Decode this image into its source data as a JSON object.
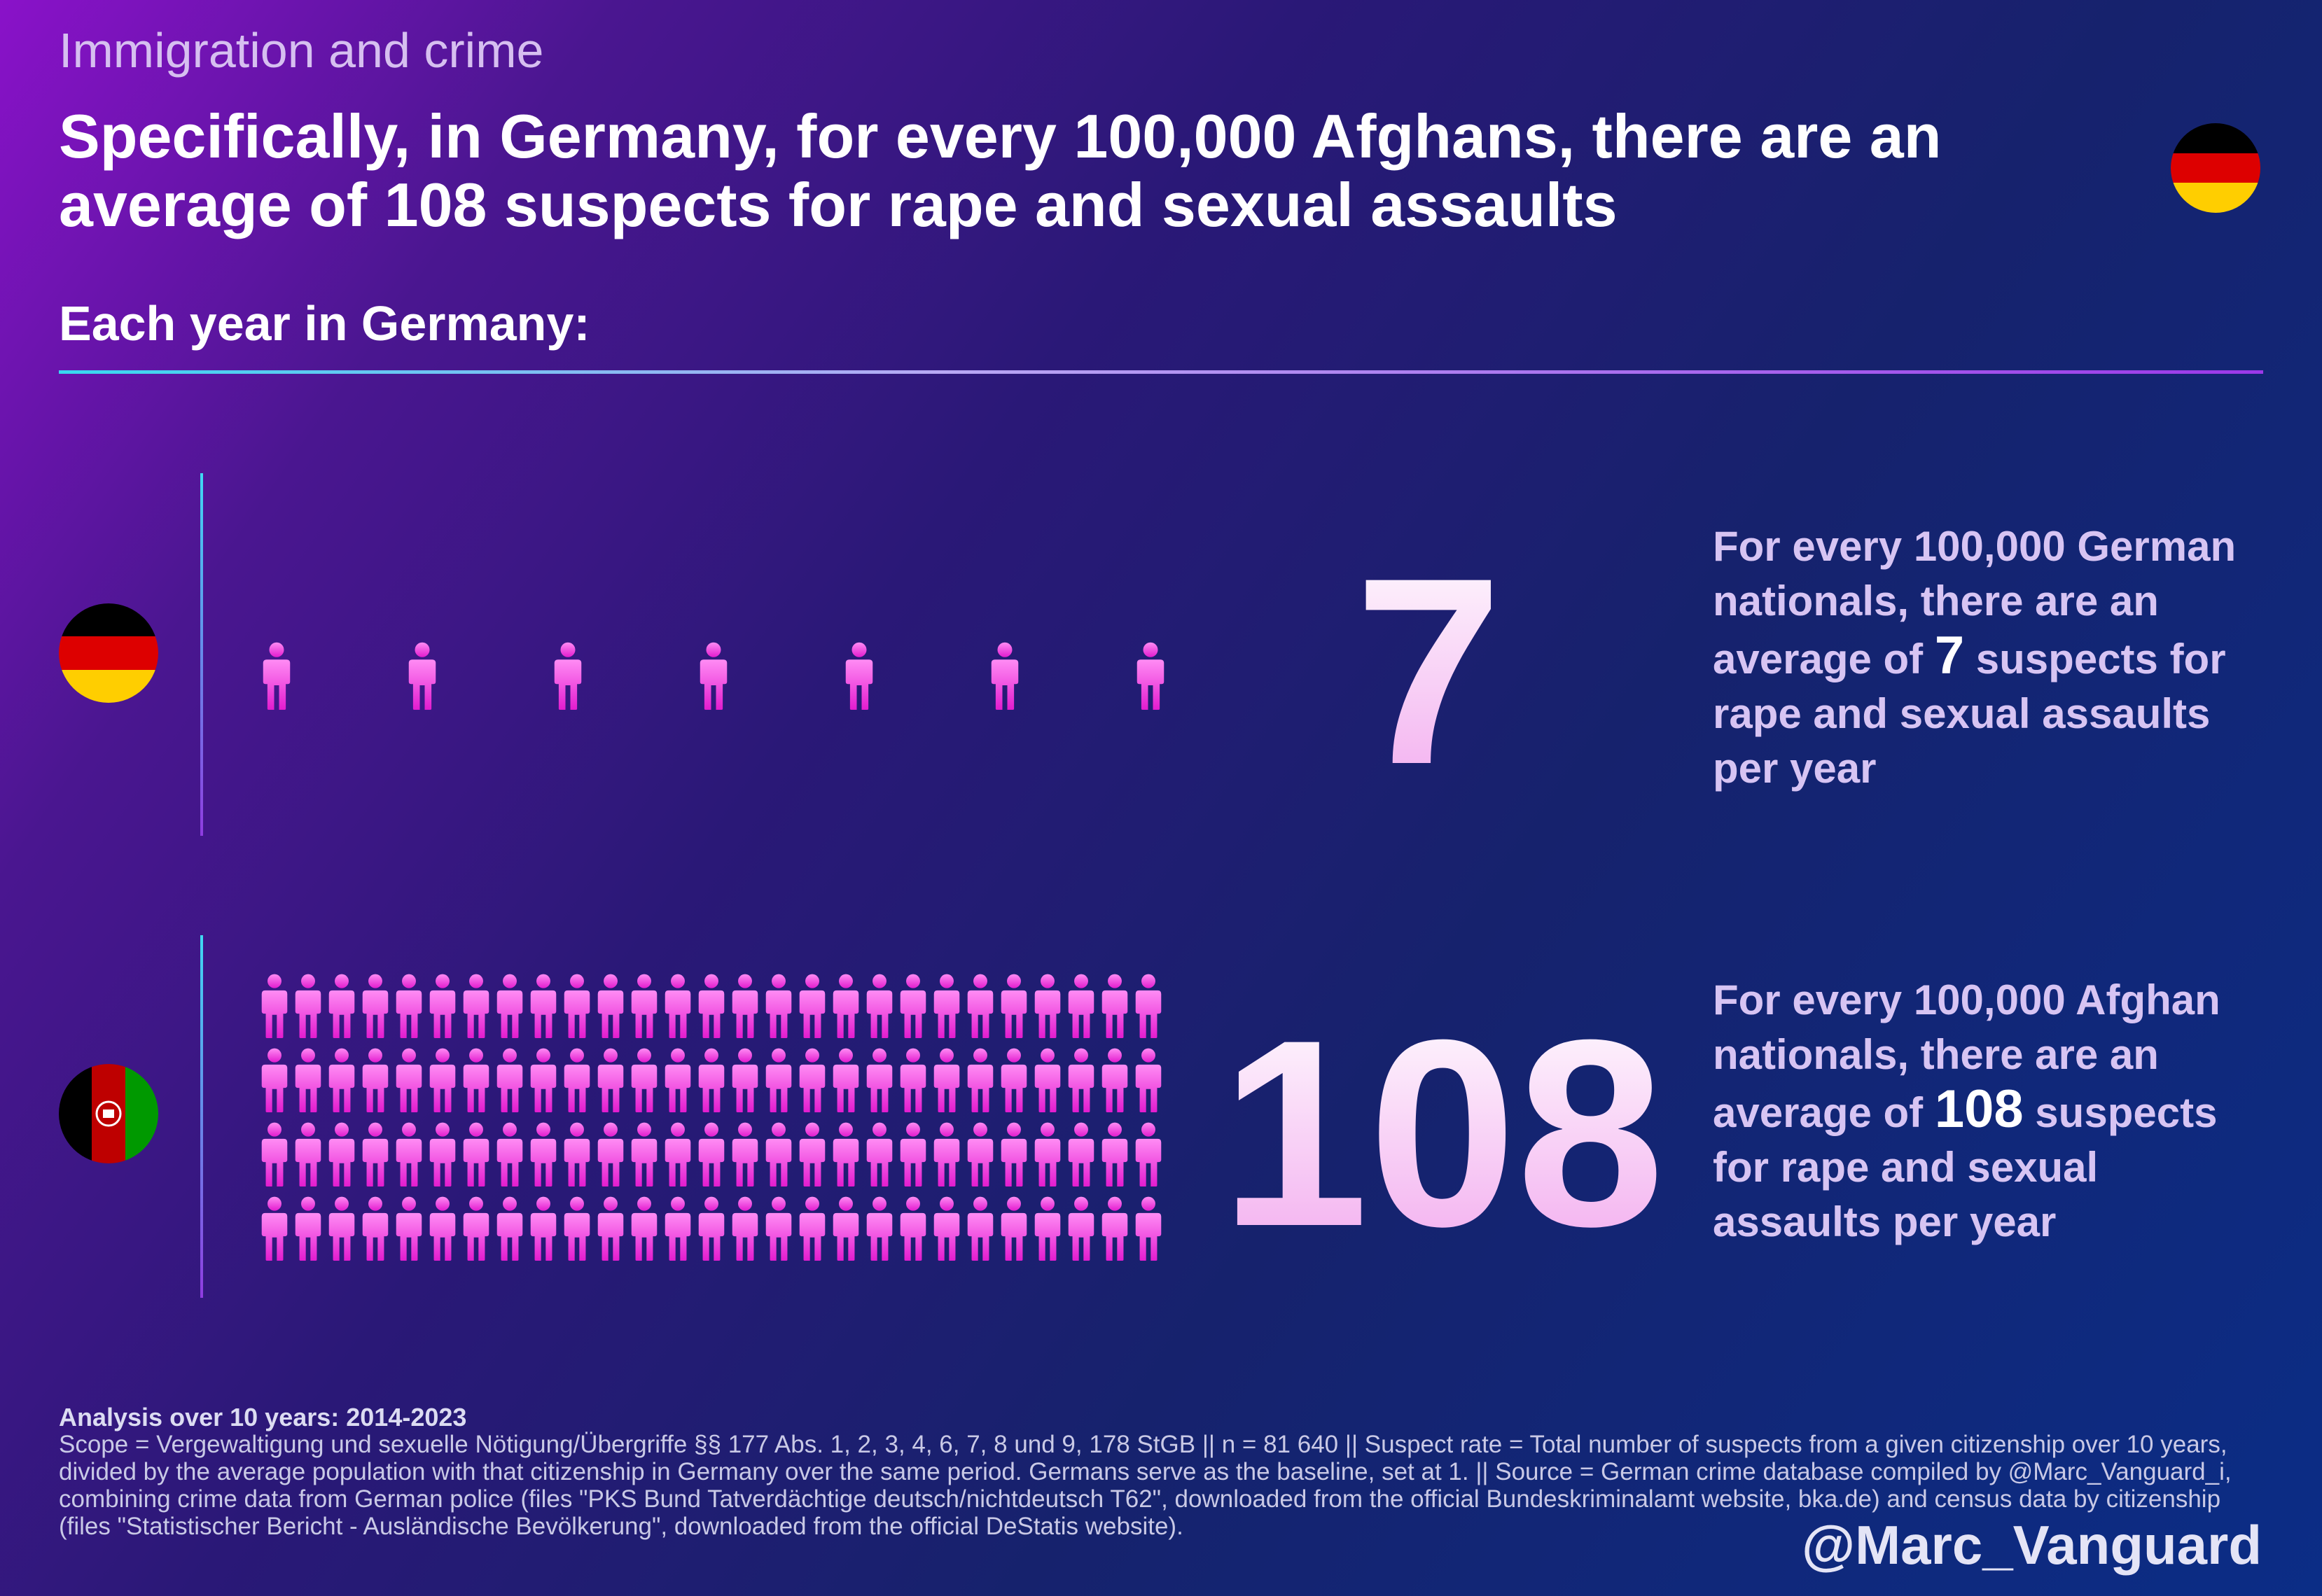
{
  "header": {
    "supertitle": "Immigration and crime",
    "title": "Specifically, in Germany, for every 100,000 Afghans, there are an average of 108 suspects for rape and sexual assaults",
    "subtitle": "Each year in Germany:"
  },
  "flags": {
    "germany": [
      "#000000",
      "#dd0000",
      "#ffce00"
    ],
    "afghanistan": [
      "#000000",
      "#be0000",
      "#009900"
    ]
  },
  "rows": [
    {
      "flag": "germany",
      "value_label": "7",
      "desc_before": "For every 100,000 German nationals, there are an average of ",
      "desc_value": "7",
      "desc_after": " suspects for rape and sexual assaults per year"
    },
    {
      "flag": "afghanistan",
      "value_label": "108",
      "desc_before": "For every 100,000 Afghan nationals, there are an average of ",
      "desc_value": "108",
      "desc_after": " suspects for rape and sexual assaults per year"
    }
  ],
  "chart_data": {
    "type": "bar",
    "categories": [
      "German nationals",
      "Afghan nationals"
    ],
    "values": [
      7,
      108
    ],
    "unit": "suspects per 100,000 per year",
    "icon": "person-icon"
  },
  "footer": {
    "title": "Analysis over 10 years: 2014-2023",
    "body": "Scope = Vergewaltigung und sexuelle Nötigung/Übergriffe §§ 177 Abs. 1, 2, 3, 4, 6, 7, 8 und 9, 178 StGB || n = 81 640 || Suspect rate = Total number of suspects from a given citizenship over 10 years, divided by the average population with that citizenship in Germany over the same period. Germans serve as the baseline, set at 1. || Source = German crime database compiled by @Marc_Vanguard_i, combining crime data from German police (files \"PKS Bund Tatverdächtige deutsch/nichtdeutsch T62\", downloaded from the official Bundeskriminalamt website, bka.de) and census data by citizenship (files \"Statistischer Bericht - Ausländische Bevölkerung\", downloaded from the official DeStatis website).",
    "handle": "@Marc_Vanguard"
  },
  "colors": {
    "icon_top": "#ff8cf4",
    "icon_bottom": "#e31ccf",
    "number_top": "#ffffff",
    "number_bottom": "#f2a8ee"
  }
}
